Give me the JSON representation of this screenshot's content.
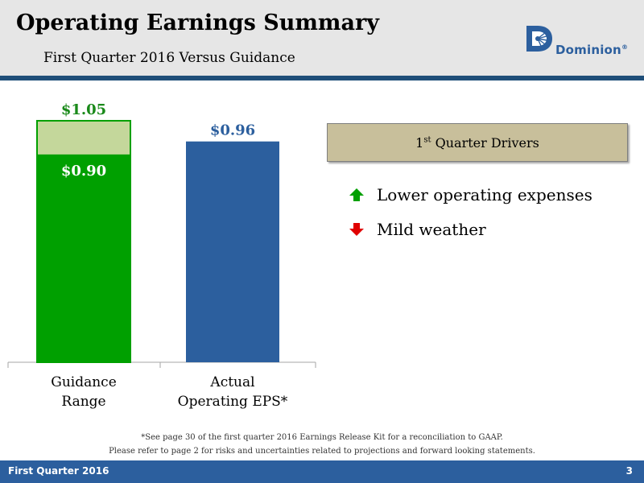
{
  "header": {
    "title": "Operating Earnings Summary",
    "subtitle": "First Quarter 2016 Versus Guidance"
  },
  "logo": {
    "text": "Dominion",
    "mark": "®"
  },
  "chart_data": {
    "type": "bar",
    "categories": [
      [
        "Guidance",
        "Range"
      ],
      [
        "Actual",
        "Operating EPS*"
      ]
    ],
    "series": [
      {
        "values": [
          0.9,
          0.96
        ],
        "labels": [
          "$0.90",
          "$0.96"
        ],
        "colors": [
          "#00a000",
          "#2c5f9e"
        ],
        "label_colors": [
          "#ffffff",
          "#2c5f9e"
        ]
      },
      {
        "values": [
          0.15,
          0
        ],
        "labels": [
          "$1.05",
          ""
        ],
        "colors": [
          "#c4d79b",
          "#c4d79b"
        ],
        "label_colors": [
          "#1a8a1a",
          "#1a8a1a"
        ]
      }
    ],
    "ylim": [
      0,
      1.12
    ],
    "grid": false,
    "legend": false
  },
  "drivers": {
    "heading_prefix": "1",
    "heading_sup": "st",
    "heading_suffix": " Quarter Drivers",
    "items": [
      {
        "text": "Lower operating expenses",
        "direction": "up",
        "color": "#00a000"
      },
      {
        "text": "Mild weather",
        "direction": "down",
        "color": "#e00000"
      }
    ]
  },
  "footnotes": {
    "line1": "*See page 30 of the first quarter 2016 Earnings Release Kit for a reconciliation to GAAP.",
    "line2": "Please refer to page 2 for risks and uncertainties related to projections and forward looking statements."
  },
  "footer": {
    "left": "First Quarter 2016",
    "page": "3"
  }
}
